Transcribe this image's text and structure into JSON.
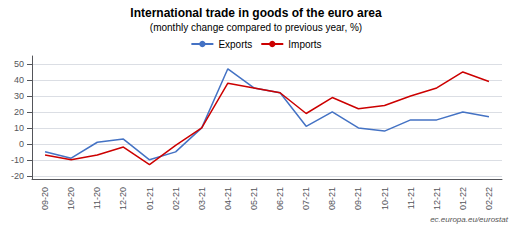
{
  "chart_data": {
    "type": "line",
    "title": "International trade in goods of the euro area",
    "subtitle": "(monthly change compared to previous year, %)",
    "categories": [
      "09-20",
      "10-20",
      "11-20",
      "12-20",
      "01-21",
      "02-21",
      "03-21",
      "04-21",
      "05-21",
      "06-21",
      "07-21",
      "08-21",
      "09-21",
      "10-21",
      "11-21",
      "12-21",
      "01-22",
      "02-22"
    ],
    "series": [
      {
        "name": "Exports",
        "color": "#4472C4",
        "values": [
          -5,
          -9,
          1,
          3,
          -10,
          -5,
          10,
          47,
          35,
          32,
          11,
          20,
          10,
          8,
          15,
          15,
          20,
          17
        ]
      },
      {
        "name": "Imports",
        "color": "#CC0000",
        "values": [
          -7,
          -10,
          -7,
          -2,
          -13,
          -1,
          10,
          38,
          35,
          32,
          19,
          29,
          22,
          24,
          30,
          35,
          45,
          39
        ]
      }
    ],
    "ylim": [
      -22,
      55
    ],
    "yticks": [
      -20,
      -10,
      0,
      10,
      20,
      30,
      40,
      50
    ],
    "grid": true,
    "legend": "top",
    "annotations": [
      "ec.europa.eu/eurostat"
    ]
  }
}
